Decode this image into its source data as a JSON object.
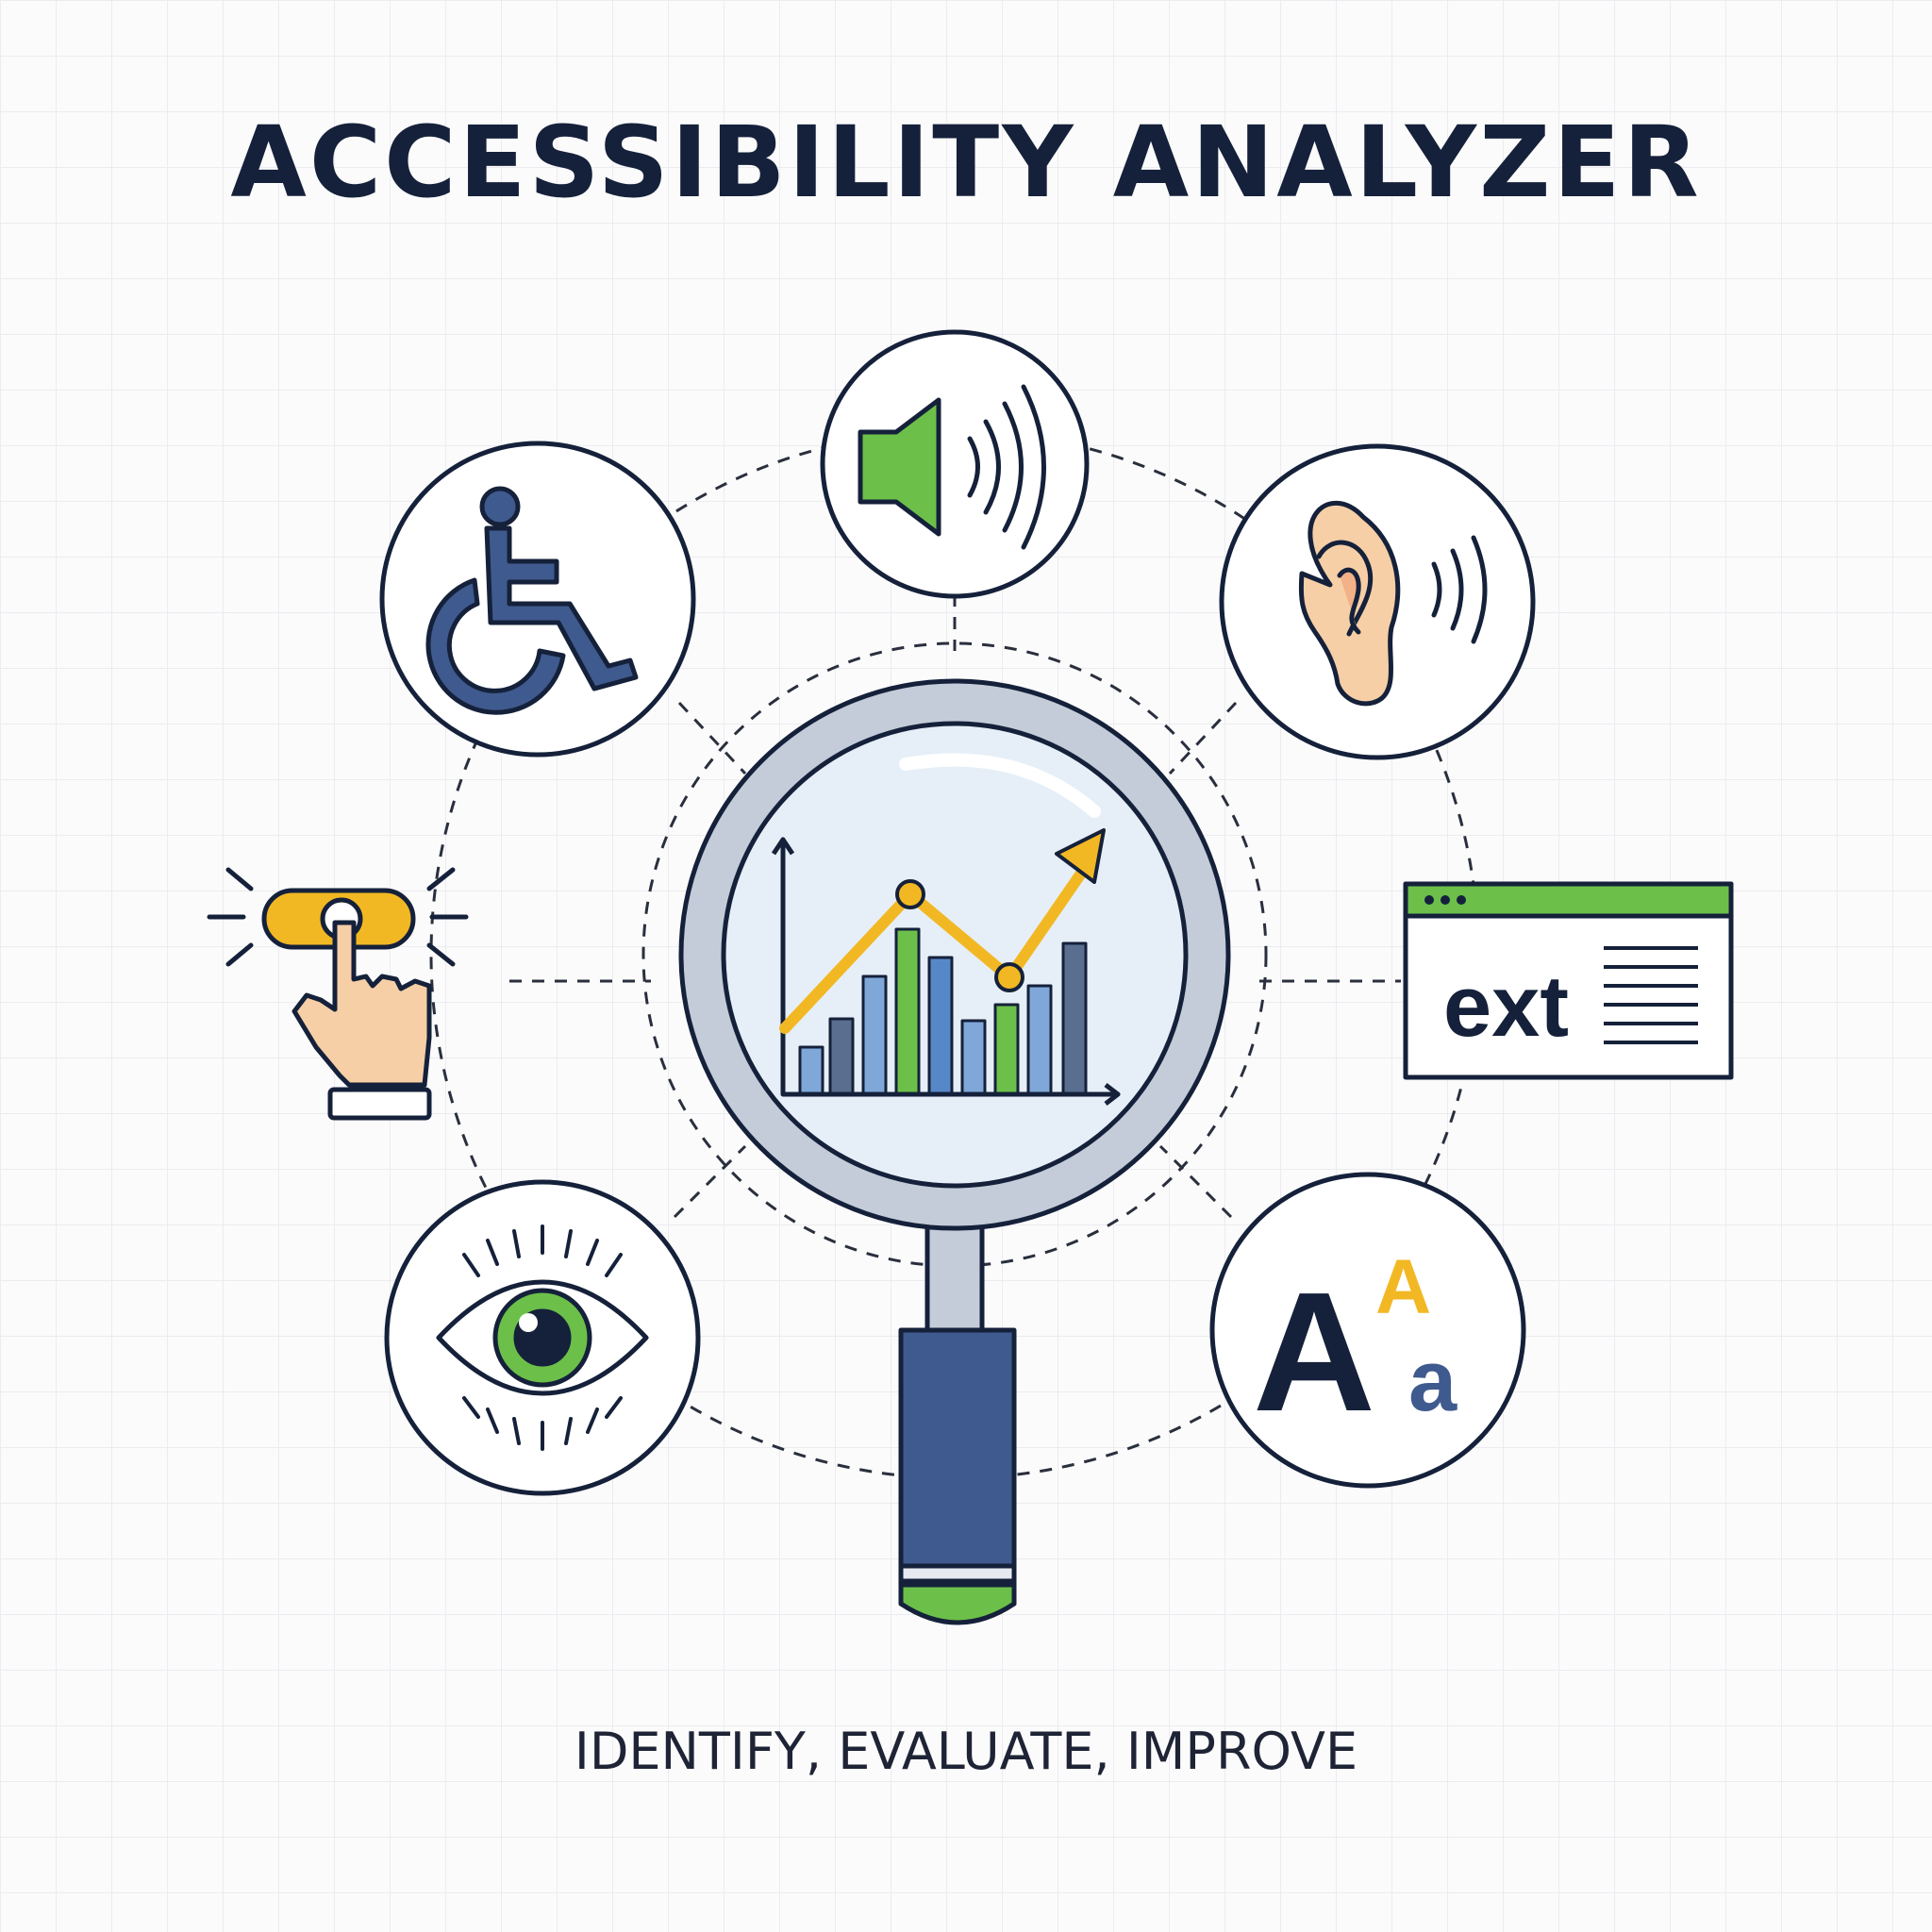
{
  "title": "ACCESSIBILITY ANALYZER",
  "tagline": "IDENTIFY, EVALUATE, IMPROVE",
  "icons": [
    {
      "name": "wheelchair-icon",
      "concept": "mobility"
    },
    {
      "name": "speaker-icon",
      "concept": "audio"
    },
    {
      "name": "ear-icon",
      "concept": "hearing"
    },
    {
      "name": "tap-button-icon",
      "concept": "interaction"
    },
    {
      "name": "text-window-icon",
      "concept": "text alternatives"
    },
    {
      "name": "eye-icon",
      "concept": "vision"
    },
    {
      "name": "font-size-icon",
      "concept": "typography"
    },
    {
      "name": "magnifier-chart-icon",
      "concept": "analysis"
    }
  ],
  "window_text": "ext",
  "font_size_glyphs": {
    "large": "A",
    "small_upper": "A",
    "small_lower": "a"
  },
  "colors": {
    "navy": "#15213a",
    "blue": "#3f5a8e",
    "green": "#6cc04a",
    "yellow": "#f2b824",
    "skin": "#f6cfa7",
    "lens": "#e6eff7"
  }
}
